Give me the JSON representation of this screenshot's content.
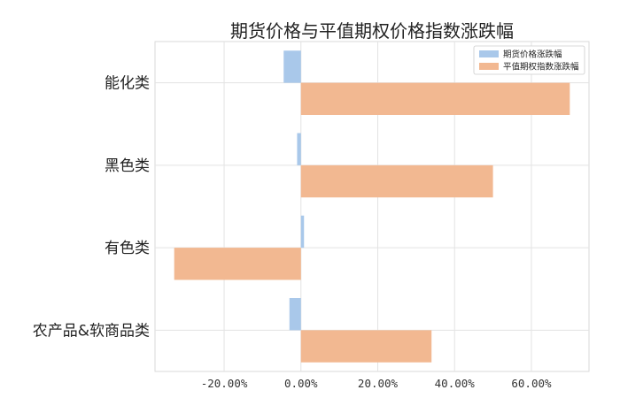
{
  "chart_data": {
    "type": "bar",
    "orientation": "horizontal",
    "title": "期货价格与平值期权价格指数涨跌幅",
    "categories": [
      "能化类",
      "黑色类",
      "有色类",
      "农产品&软商品类"
    ],
    "series": [
      {
        "name": "期货价格涨跌幅",
        "values": [
          -4.5,
          -1.0,
          0.8,
          -3.0
        ],
        "color": "#a9c8ea"
      },
      {
        "name": "平值期权指数涨跌幅",
        "values": [
          70.0,
          50.0,
          -33.0,
          34.0
        ],
        "color": "#f2b891"
      }
    ],
    "xlim": [
      -38,
      75
    ],
    "xticks": [
      -20,
      0,
      20,
      40,
      60
    ],
    "xtick_labels": [
      "-20.00%",
      "0.00%",
      "20.00%",
      "40.00%",
      "60.00%"
    ],
    "grid": true,
    "legend": "top-right"
  }
}
